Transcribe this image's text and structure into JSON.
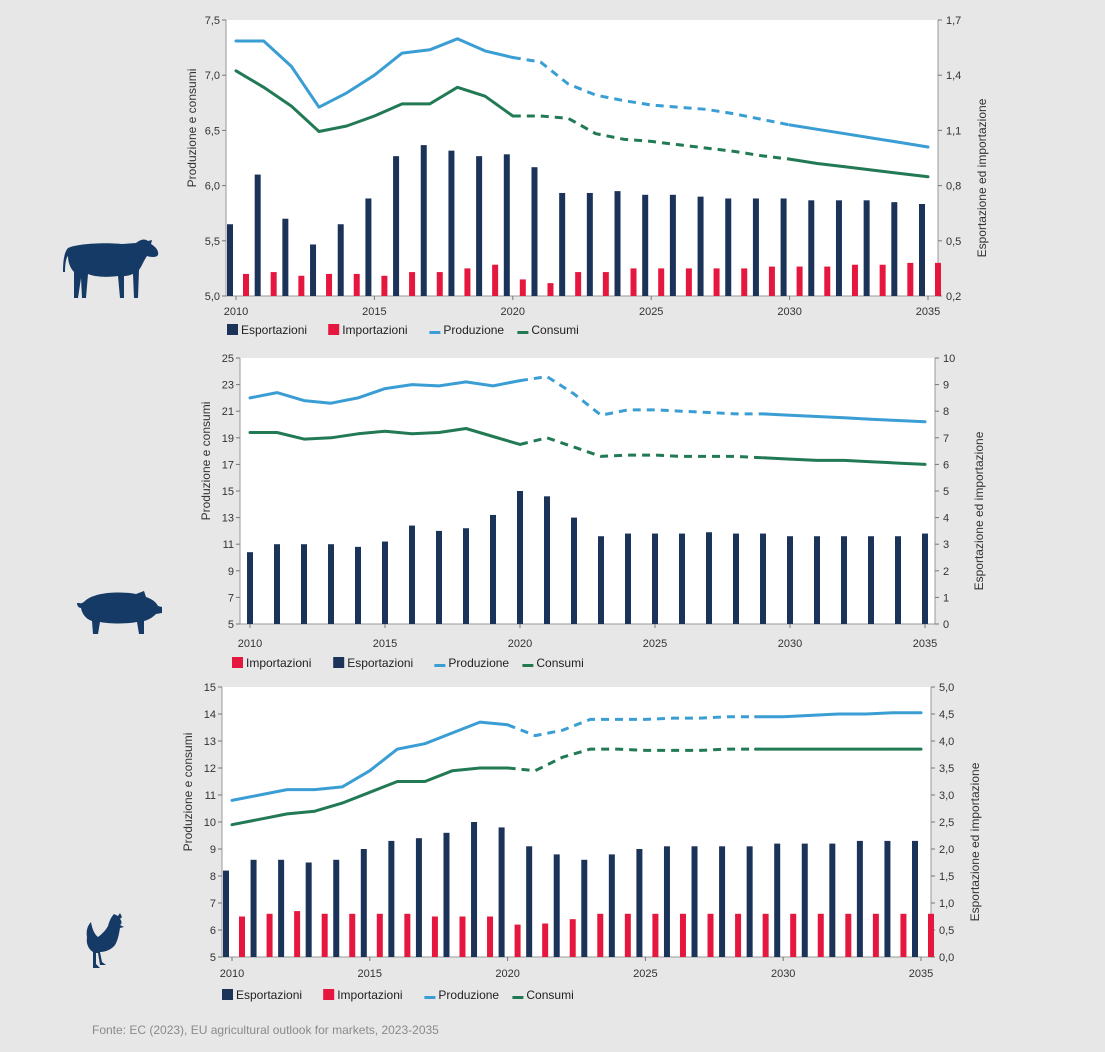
{
  "colors": {
    "exports": "#1b3358",
    "imports": "#e5173f",
    "production": "#3a9ed4",
    "consumption": "#227a55",
    "axis": "#4d4d4d",
    "animal": "#163a66"
  },
  "source": "Fonte: EC (2023), EU agricultural outlook for markets, 2023-2035",
  "chart_data": [
    {
      "id": "beef",
      "type": "bar+line",
      "animal_icon": "cow-icon",
      "x": [
        2010,
        2011,
        2012,
        2013,
        2014,
        2015,
        2016,
        2017,
        2018,
        2019,
        2020,
        2021,
        2022,
        2023,
        2024,
        2025,
        2026,
        2027,
        2028,
        2029,
        2030,
        2031,
        2032,
        2033,
        2034,
        2035
      ],
      "x_ticks": [
        "2010",
        "2015",
        "2020",
        "2025",
        "2030",
        "2035"
      ],
      "y_left": {
        "label": "Produzione e consumi",
        "min": 5.0,
        "max": 7.5,
        "ticks": [
          "5,0",
          "5,5",
          "6,0",
          "6,5",
          "7,0",
          "7,5"
        ]
      },
      "y_right": {
        "label": "Esportazione ed importazione",
        "min": 0.2,
        "max": 1.7,
        "ticks": [
          "0,2",
          "0,5",
          "0,8",
          "1,1",
          "1,4",
          "1,7"
        ]
      },
      "series": [
        {
          "name": "Esportazioni",
          "kind": "bar",
          "axis": "right",
          "values": [
            0.59,
            0.86,
            0.62,
            0.48,
            0.59,
            0.73,
            0.96,
            1.02,
            0.99,
            0.96,
            0.97,
            0.9,
            0.76,
            0.76,
            0.77,
            0.75,
            0.75,
            0.74,
            0.73,
            0.73,
            0.73,
            0.72,
            0.72,
            0.72,
            0.71,
            0.7
          ]
        },
        {
          "name": "Importazioni",
          "kind": "bar",
          "axis": "right",
          "values": [
            0.32,
            0.33,
            0.31,
            0.32,
            0.32,
            0.31,
            0.33,
            0.33,
            0.35,
            0.37,
            0.29,
            0.27,
            0.33,
            0.33,
            0.35,
            0.35,
            0.35,
            0.35,
            0.35,
            0.36,
            0.36,
            0.36,
            0.37,
            0.37,
            0.38,
            0.38
          ]
        },
        {
          "name": "Produzione",
          "kind": "line",
          "axis": "left",
          "solid_upto": 2020,
          "dash_from": 2020,
          "dash_to": 2030,
          "values": [
            7.31,
            7.31,
            7.08,
            6.71,
            6.84,
            7.0,
            7.2,
            7.23,
            7.33,
            7.22,
            7.16,
            7.12,
            6.92,
            6.82,
            6.77,
            6.73,
            6.71,
            6.69,
            6.65,
            6.6,
            6.55,
            6.51,
            6.47,
            6.43,
            6.39,
            6.35
          ]
        },
        {
          "name": "Consumi",
          "kind": "line",
          "axis": "left",
          "solid_upto": 2020,
          "dash_from": 2020,
          "dash_to": 2030,
          "values": [
            7.04,
            6.89,
            6.72,
            6.49,
            6.54,
            6.63,
            6.74,
            6.74,
            6.89,
            6.81,
            6.63,
            6.63,
            6.61,
            6.47,
            6.42,
            6.4,
            6.37,
            6.34,
            6.31,
            6.27,
            6.24,
            6.2,
            6.17,
            6.14,
            6.11,
            6.08
          ]
        }
      ],
      "legend": [
        "Esportazioni",
        "Importazioni",
        "Produzione",
        "Consumi"
      ]
    },
    {
      "id": "pork",
      "type": "bar+line",
      "animal_icon": "pig-icon",
      "x": [
        2010,
        2011,
        2012,
        2013,
        2014,
        2015,
        2016,
        2017,
        2018,
        2019,
        2020,
        2021,
        2022,
        2023,
        2024,
        2025,
        2026,
        2027,
        2028,
        2029,
        2030,
        2031,
        2032,
        2033,
        2034,
        2035
      ],
      "x_ticks": [
        "2010",
        "2015",
        "2020",
        "2025",
        "2030",
        "2035"
      ],
      "y_left": {
        "label": "Produzione e consumi",
        "min": 5,
        "max": 25,
        "ticks": [
          "5",
          "7",
          "9",
          "11",
          "13",
          "15",
          "17",
          "19",
          "21",
          "23",
          "25"
        ]
      },
      "y_right": {
        "label": "Esportazione ed importazione",
        "min": 0,
        "max": 10,
        "ticks": [
          "0",
          "1",
          "2",
          "3",
          "4",
          "5",
          "6",
          "7",
          "8",
          "9",
          "10"
        ]
      },
      "series": [
        {
          "name": "Importazioni",
          "kind": "bar",
          "axis": "right",
          "values": [
            0.12,
            0.12,
            0.12,
            0.12,
            0.13,
            0.15,
            0.1,
            0.12,
            0.12,
            0.13,
            0.12,
            0.1,
            0.1,
            0.11,
            0.11,
            0.1,
            0.05,
            0.1,
            0.11,
            0.1,
            0.1,
            0.1,
            0.1,
            0.05,
            0.08,
            0.1
          ]
        },
        {
          "name": "Esportazioni",
          "kind": "bar",
          "axis": "left_scale_right",
          "values": [
            2.7,
            3.0,
            3.0,
            3.0,
            2.9,
            3.1,
            3.7,
            3.5,
            3.6,
            4.1,
            5.0,
            4.8,
            4.0,
            3.3,
            3.4,
            3.4,
            3.4,
            3.45,
            3.4,
            3.4,
            3.3,
            3.3,
            3.3,
            3.3,
            3.3,
            3.4
          ]
        },
        {
          "name": "Produzione",
          "kind": "line",
          "axis": "left",
          "solid_upto": 2020,
          "dash_from": 2020,
          "dash_to": 2029,
          "values": [
            22.0,
            22.4,
            21.8,
            21.6,
            22.0,
            22.7,
            23.0,
            22.9,
            23.2,
            22.9,
            23.3,
            23.6,
            22.3,
            20.7,
            21.1,
            21.1,
            21.0,
            20.9,
            20.8,
            20.8,
            20.7,
            20.6,
            20.5,
            20.4,
            20.3,
            20.2
          ]
        },
        {
          "name": "Consumi",
          "kind": "line",
          "axis": "left",
          "solid_upto": 2020,
          "dash_from": 2020,
          "dash_to": 2029,
          "values": [
            19.4,
            19.4,
            18.9,
            19.0,
            19.3,
            19.5,
            19.3,
            19.4,
            19.7,
            19.1,
            18.5,
            19.0,
            18.3,
            17.6,
            17.7,
            17.7,
            17.6,
            17.6,
            17.6,
            17.5,
            17.4,
            17.3,
            17.3,
            17.2,
            17.1,
            17.0
          ]
        }
      ],
      "legend": [
        "Importazioni",
        "Esportazioni",
        "Produzione",
        "Consumi"
      ]
    },
    {
      "id": "poultry",
      "type": "bar+line",
      "animal_icon": "rooster-icon",
      "x": [
        2010,
        2011,
        2012,
        2013,
        2014,
        2015,
        2016,
        2017,
        2018,
        2019,
        2020,
        2021,
        2022,
        2023,
        2024,
        2025,
        2026,
        2027,
        2028,
        2029,
        2030,
        2031,
        2032,
        2033,
        2034,
        2035
      ],
      "x_ticks": [
        "2010",
        "2015",
        "2020",
        "2025",
        "2030",
        "2035"
      ],
      "y_left": {
        "label": "Produzione e consumi",
        "min": 5,
        "max": 15,
        "ticks": [
          "5",
          "6",
          "7",
          "8",
          "9",
          "10",
          "11",
          "12",
          "13",
          "14",
          "15"
        ]
      },
      "y_right": {
        "label": "Esportazione ed importazione",
        "min": 0.0,
        "max": 5.0,
        "ticks": [
          "0,0",
          "0,5",
          "1,0",
          "1,5",
          "2,0",
          "2,5",
          "3,0",
          "3,5",
          "4,0",
          "4,5",
          "5,0"
        ]
      },
      "series": [
        {
          "name": "Esportazioni",
          "kind": "bar",
          "axis": "right",
          "values": [
            1.6,
            1.8,
            1.8,
            1.75,
            1.8,
            2.0,
            2.15,
            2.2,
            2.3,
            2.5,
            2.4,
            2.05,
            1.9,
            1.8,
            1.9,
            2.0,
            2.05,
            2.05,
            2.05,
            2.05,
            2.1,
            2.1,
            2.1,
            2.15,
            2.15,
            2.15
          ]
        },
        {
          "name": "Importazioni",
          "kind": "bar",
          "axis": "right",
          "values": [
            0.75,
            0.8,
            0.85,
            0.8,
            0.8,
            0.8,
            0.8,
            0.75,
            0.75,
            0.75,
            0.6,
            0.62,
            0.7,
            0.8,
            0.8,
            0.8,
            0.8,
            0.8,
            0.8,
            0.8,
            0.8,
            0.8,
            0.8,
            0.8,
            0.8,
            0.8
          ]
        },
        {
          "name": "Produzione",
          "kind": "line",
          "axis": "left",
          "solid_upto": 2020,
          "dash_from": 2020,
          "dash_to": 2029,
          "values": [
            10.8,
            11.0,
            11.2,
            11.2,
            11.3,
            11.9,
            12.7,
            12.9,
            13.3,
            13.7,
            13.6,
            13.2,
            13.4,
            13.8,
            13.8,
            13.8,
            13.85,
            13.85,
            13.9,
            13.9,
            13.9,
            13.95,
            14.0,
            14.0,
            14.05,
            14.05
          ]
        },
        {
          "name": "Consumi",
          "kind": "line",
          "axis": "left",
          "solid_upto": 2020,
          "dash_from": 2020,
          "dash_to": 2029,
          "values": [
            9.9,
            10.1,
            10.3,
            10.4,
            10.7,
            11.1,
            11.5,
            11.5,
            11.9,
            12.0,
            12.0,
            11.9,
            12.4,
            12.7,
            12.7,
            12.65,
            12.65,
            12.65,
            12.7,
            12.7,
            12.7,
            12.7,
            12.7,
            12.7,
            12.7,
            12.7
          ]
        }
      ],
      "legend": [
        "Esportazioni",
        "Importazioni",
        "Produzione",
        "Consumi"
      ]
    }
  ]
}
